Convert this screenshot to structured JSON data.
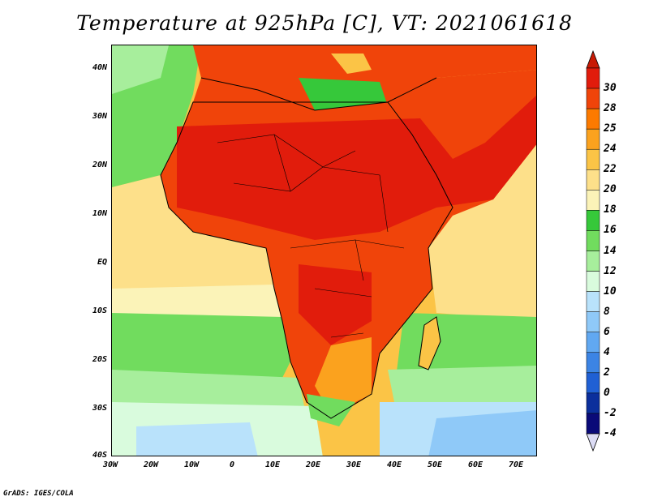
{
  "title": "Temperature at 925hPa [C], VT: 2021061618",
  "credit": "GrADS: IGES/COLA",
  "lat_labels": [
    "40N",
    "30N",
    "20N",
    "10N",
    "EQ",
    "10S",
    "20S",
    "30S",
    "40S"
  ],
  "lon_labels": [
    "30W",
    "20W",
    "10W",
    "0",
    "10E",
    "20E",
    "30E",
    "40E",
    "50E",
    "60E",
    "70E"
  ],
  "colorbar": {
    "labels": [
      "30",
      "28",
      "25",
      "24",
      "22",
      "20",
      "18",
      "16",
      "14",
      "12",
      "10",
      "8",
      "6",
      "4",
      "2",
      "0",
      "-2",
      "-4"
    ],
    "colors": [
      "#e11c0c",
      "#f0440a",
      "#fc7a00",
      "#fba21e",
      "#fbc446",
      "#fde08a",
      "#fbf3b8",
      "#36c83a",
      "#71dc5e",
      "#a7ee9c",
      "#d9fbdd",
      "#b9e2fb",
      "#8fc9f8",
      "#61a8f1",
      "#3c84e4",
      "#2060d4",
      "#0b2f9c",
      "#0a0a78"
    ],
    "extend_top_color": "#c81a05",
    "extend_bottom_color": "#dcdcf5"
  },
  "map_colors": {
    "ocean_cool": "#71dc5e",
    "ocean_cold": "#a7ee9c",
    "ocean_mild": "#fbc446",
    "ocean_south": "#b9e2fb",
    "ocean_deep": "#8fc9f8",
    "land_hot": "#e11c0c",
    "land_warm": "#f0440a",
    "land_mild": "#fba21e",
    "sea_med": "#36c83a"
  }
}
